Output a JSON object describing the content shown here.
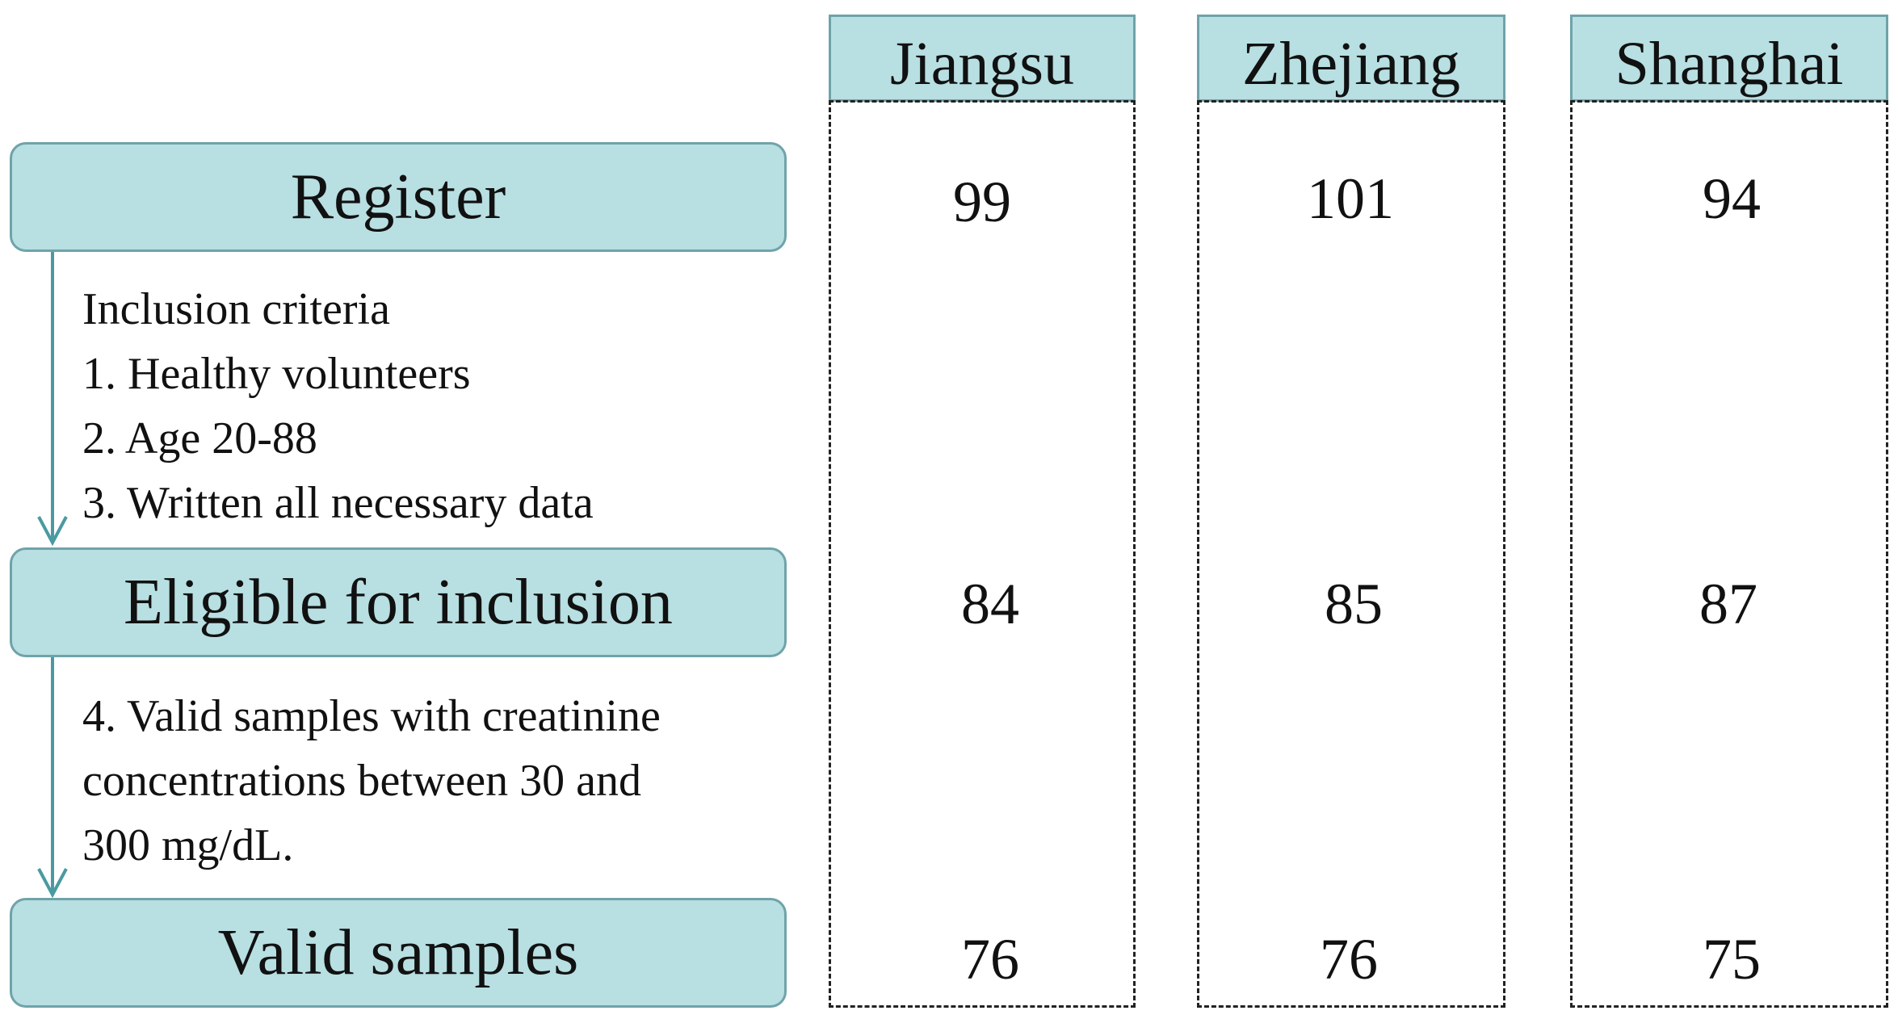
{
  "stages": {
    "register": "Register",
    "eligible": "Eligible for inclusion",
    "valid": "Valid samples"
  },
  "criteria_step1": [
    "Inclusion criteria",
    "1. Healthy volunteers",
    "2. Age 20-88",
    "3. Written all necessary data"
  ],
  "criteria_step2": [
    "4. Valid samples with creatinine",
    "concentrations between 30 and",
    "300 mg/dL."
  ],
  "regions": [
    {
      "name": "Jiangsu",
      "register": "99",
      "eligible": "84",
      "valid": "76"
    },
    {
      "name": "Zhejiang",
      "register": "101",
      "eligible": "85",
      "valid": "76"
    },
    {
      "name": "Shanghai",
      "register": "94",
      "eligible": "87",
      "valid": "75"
    }
  ],
  "colors": {
    "box_fill": "#b8dfe2",
    "box_border": "#6fa3aa",
    "arrow": "#4a9aa0"
  }
}
